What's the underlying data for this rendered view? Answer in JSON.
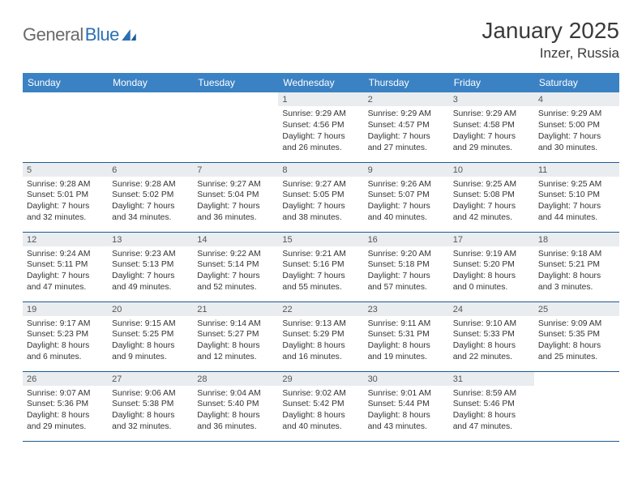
{
  "brand": {
    "part1": "General",
    "part2": "Blue"
  },
  "title": "January 2025",
  "location": "Inzer, Russia",
  "colors": {
    "header_bg": "#3b82c4",
    "header_text": "#ffffff",
    "row_border": "#1e5a94",
    "daynum_bg": "#e9edf0",
    "text": "#333333",
    "logo_gray": "#6a6a6a",
    "logo_blue": "#2b6fb3"
  },
  "weekdays": [
    "Sunday",
    "Monday",
    "Tuesday",
    "Wednesday",
    "Thursday",
    "Friday",
    "Saturday"
  ],
  "weeks": [
    [
      {
        "n": "",
        "body": ""
      },
      {
        "n": "",
        "body": ""
      },
      {
        "n": "",
        "body": ""
      },
      {
        "n": "1",
        "body": "Sunrise: 9:29 AM\nSunset: 4:56 PM\nDaylight: 7 hours and 26 minutes."
      },
      {
        "n": "2",
        "body": "Sunrise: 9:29 AM\nSunset: 4:57 PM\nDaylight: 7 hours and 27 minutes."
      },
      {
        "n": "3",
        "body": "Sunrise: 9:29 AM\nSunset: 4:58 PM\nDaylight: 7 hours and 29 minutes."
      },
      {
        "n": "4",
        "body": "Sunrise: 9:29 AM\nSunset: 5:00 PM\nDaylight: 7 hours and 30 minutes."
      }
    ],
    [
      {
        "n": "5",
        "body": "Sunrise: 9:28 AM\nSunset: 5:01 PM\nDaylight: 7 hours and 32 minutes."
      },
      {
        "n": "6",
        "body": "Sunrise: 9:28 AM\nSunset: 5:02 PM\nDaylight: 7 hours and 34 minutes."
      },
      {
        "n": "7",
        "body": "Sunrise: 9:27 AM\nSunset: 5:04 PM\nDaylight: 7 hours and 36 minutes."
      },
      {
        "n": "8",
        "body": "Sunrise: 9:27 AM\nSunset: 5:05 PM\nDaylight: 7 hours and 38 minutes."
      },
      {
        "n": "9",
        "body": "Sunrise: 9:26 AM\nSunset: 5:07 PM\nDaylight: 7 hours and 40 minutes."
      },
      {
        "n": "10",
        "body": "Sunrise: 9:25 AM\nSunset: 5:08 PM\nDaylight: 7 hours and 42 minutes."
      },
      {
        "n": "11",
        "body": "Sunrise: 9:25 AM\nSunset: 5:10 PM\nDaylight: 7 hours and 44 minutes."
      }
    ],
    [
      {
        "n": "12",
        "body": "Sunrise: 9:24 AM\nSunset: 5:11 PM\nDaylight: 7 hours and 47 minutes."
      },
      {
        "n": "13",
        "body": "Sunrise: 9:23 AM\nSunset: 5:13 PM\nDaylight: 7 hours and 49 minutes."
      },
      {
        "n": "14",
        "body": "Sunrise: 9:22 AM\nSunset: 5:14 PM\nDaylight: 7 hours and 52 minutes."
      },
      {
        "n": "15",
        "body": "Sunrise: 9:21 AM\nSunset: 5:16 PM\nDaylight: 7 hours and 55 minutes."
      },
      {
        "n": "16",
        "body": "Sunrise: 9:20 AM\nSunset: 5:18 PM\nDaylight: 7 hours and 57 minutes."
      },
      {
        "n": "17",
        "body": "Sunrise: 9:19 AM\nSunset: 5:20 PM\nDaylight: 8 hours and 0 minutes."
      },
      {
        "n": "18",
        "body": "Sunrise: 9:18 AM\nSunset: 5:21 PM\nDaylight: 8 hours and 3 minutes."
      }
    ],
    [
      {
        "n": "19",
        "body": "Sunrise: 9:17 AM\nSunset: 5:23 PM\nDaylight: 8 hours and 6 minutes."
      },
      {
        "n": "20",
        "body": "Sunrise: 9:15 AM\nSunset: 5:25 PM\nDaylight: 8 hours and 9 minutes."
      },
      {
        "n": "21",
        "body": "Sunrise: 9:14 AM\nSunset: 5:27 PM\nDaylight: 8 hours and 12 minutes."
      },
      {
        "n": "22",
        "body": "Sunrise: 9:13 AM\nSunset: 5:29 PM\nDaylight: 8 hours and 16 minutes."
      },
      {
        "n": "23",
        "body": "Sunrise: 9:11 AM\nSunset: 5:31 PM\nDaylight: 8 hours and 19 minutes."
      },
      {
        "n": "24",
        "body": "Sunrise: 9:10 AM\nSunset: 5:33 PM\nDaylight: 8 hours and 22 minutes."
      },
      {
        "n": "25",
        "body": "Sunrise: 9:09 AM\nSunset: 5:35 PM\nDaylight: 8 hours and 25 minutes."
      }
    ],
    [
      {
        "n": "26",
        "body": "Sunrise: 9:07 AM\nSunset: 5:36 PM\nDaylight: 8 hours and 29 minutes."
      },
      {
        "n": "27",
        "body": "Sunrise: 9:06 AM\nSunset: 5:38 PM\nDaylight: 8 hours and 32 minutes."
      },
      {
        "n": "28",
        "body": "Sunrise: 9:04 AM\nSunset: 5:40 PM\nDaylight: 8 hours and 36 minutes."
      },
      {
        "n": "29",
        "body": "Sunrise: 9:02 AM\nSunset: 5:42 PM\nDaylight: 8 hours and 40 minutes."
      },
      {
        "n": "30",
        "body": "Sunrise: 9:01 AM\nSunset: 5:44 PM\nDaylight: 8 hours and 43 minutes."
      },
      {
        "n": "31",
        "body": "Sunrise: 8:59 AM\nSunset: 5:46 PM\nDaylight: 8 hours and 47 minutes."
      },
      {
        "n": "",
        "body": ""
      }
    ]
  ]
}
